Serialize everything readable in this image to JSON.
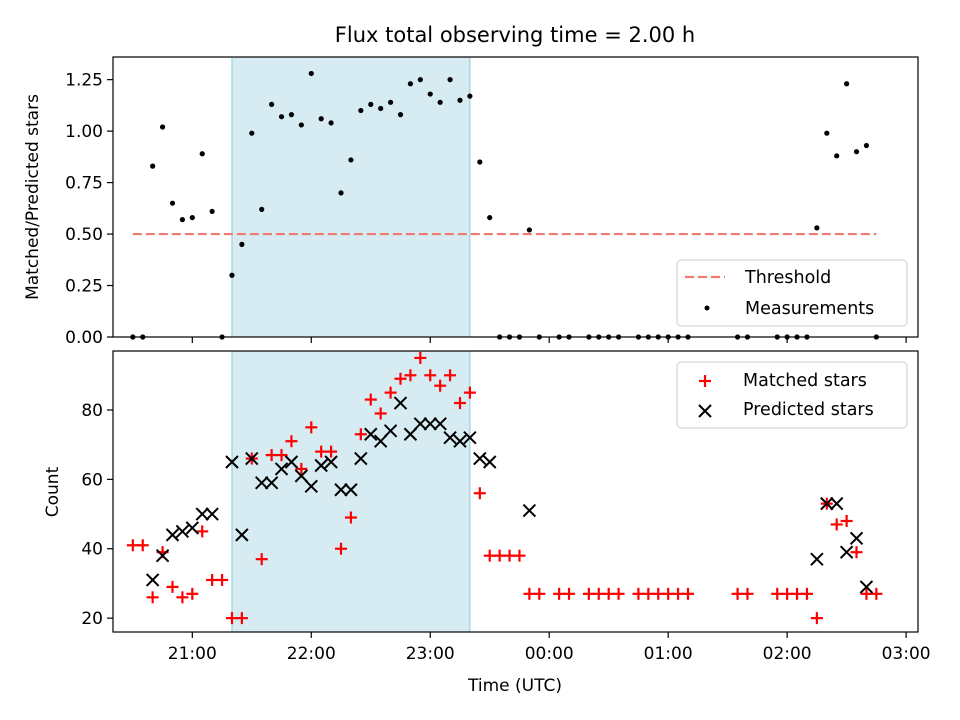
{
  "chart_data": [
    {
      "type": "scatter",
      "title": "Flux total observing time = 2.00 h",
      "xlabel": "",
      "ylabel": "Matched/Predicted stars",
      "xlim": [
        "20:20",
        "03:06"
      ],
      "ylim": [
        0.0,
        1.36
      ],
      "yticks": [
        "0.00",
        "0.25",
        "0.50",
        "0.75",
        "1.00",
        "1.25"
      ],
      "shaded_interval": [
        "21:20",
        "23:20"
      ],
      "legend_position": "lower right",
      "threshold": {
        "name": "Threshold",
        "value": 0.5,
        "x_start": "20:30",
        "x_end": "02:45",
        "color": "#f07a72"
      },
      "series": [
        {
          "name": "Measurements",
          "color": "#000000",
          "marker": "dot",
          "points": [
            [
              "20:30",
              0.0
            ],
            [
              "20:35",
              0.0
            ],
            [
              "20:40",
              0.83
            ],
            [
              "20:45",
              1.02
            ],
            [
              "20:50",
              0.65
            ],
            [
              "20:55",
              0.57
            ],
            [
              "21:00",
              0.58
            ],
            [
              "21:05",
              0.89
            ],
            [
              "21:10",
              0.61
            ],
            [
              "21:15",
              0.0
            ],
            [
              "21:20",
              0.3
            ],
            [
              "21:25",
              0.45
            ],
            [
              "21:30",
              0.99
            ],
            [
              "21:35",
              0.62
            ],
            [
              "21:40",
              1.13
            ],
            [
              "21:45",
              1.07
            ],
            [
              "21:50",
              1.08
            ],
            [
              "21:55",
              1.03
            ],
            [
              "22:00",
              1.28
            ],
            [
              "22:05",
              1.06
            ],
            [
              "22:10",
              1.04
            ],
            [
              "22:15",
              0.7
            ],
            [
              "22:20",
              0.86
            ],
            [
              "22:25",
              1.1
            ],
            [
              "22:30",
              1.13
            ],
            [
              "22:35",
              1.11
            ],
            [
              "22:40",
              1.14
            ],
            [
              "22:45",
              1.08
            ],
            [
              "22:50",
              1.23
            ],
            [
              "22:55",
              1.25
            ],
            [
              "23:00",
              1.18
            ],
            [
              "23:05",
              1.14
            ],
            [
              "23:10",
              1.25
            ],
            [
              "23:15",
              1.15
            ],
            [
              "23:20",
              1.17
            ],
            [
              "23:25",
              0.85
            ],
            [
              "23:30",
              0.58
            ],
            [
              "23:35",
              0.0
            ],
            [
              "23:40",
              0.0
            ],
            [
              "23:45",
              0.0
            ],
            [
              "23:50",
              0.52
            ],
            [
              "23:55",
              0.0
            ],
            [
              "00:05",
              0.0
            ],
            [
              "00:10",
              0.0
            ],
            [
              "00:20",
              0.0
            ],
            [
              "00:25",
              0.0
            ],
            [
              "00:30",
              0.0
            ],
            [
              "00:35",
              0.0
            ],
            [
              "00:45",
              0.0
            ],
            [
              "00:50",
              0.0
            ],
            [
              "00:55",
              0.0
            ],
            [
              "01:00",
              0.0
            ],
            [
              "01:05",
              0.0
            ],
            [
              "01:10",
              0.0
            ],
            [
              "01:35",
              0.0
            ],
            [
              "01:40",
              0.0
            ],
            [
              "01:55",
              0.0
            ],
            [
              "02:00",
              0.0
            ],
            [
              "02:05",
              0.0
            ],
            [
              "02:10",
              0.0
            ],
            [
              "02:15",
              0.53
            ],
            [
              "02:20",
              0.99
            ],
            [
              "02:25",
              0.88
            ],
            [
              "02:30",
              1.23
            ],
            [
              "02:35",
              0.9
            ],
            [
              "02:40",
              0.93
            ],
            [
              "02:45",
              0.0
            ]
          ]
        }
      ]
    },
    {
      "type": "scatter",
      "title": "",
      "xlabel": "Time (UTC)",
      "ylabel": "Count",
      "xlim": [
        "20:20",
        "03:06"
      ],
      "ylim": [
        16.0,
        97.0
      ],
      "xticks": [
        "21:00",
        "22:00",
        "23:00",
        "00:00",
        "01:00",
        "02:00",
        "03:00"
      ],
      "yticks": [
        "20",
        "40",
        "60",
        "80"
      ],
      "shaded_interval": [
        "21:20",
        "23:20"
      ],
      "legend_position": "upper right",
      "series": [
        {
          "name": "Matched stars",
          "color": "#ff0000",
          "marker": "plus",
          "points": [
            [
              "20:30",
              41
            ],
            [
              "20:35",
              41
            ],
            [
              "20:40",
              26
            ],
            [
              "20:45",
              39
            ],
            [
              "20:50",
              29
            ],
            [
              "20:55",
              26
            ],
            [
              "21:00",
              27
            ],
            [
              "21:05",
              45
            ],
            [
              "21:10",
              31
            ],
            [
              "21:15",
              31
            ],
            [
              "21:20",
              20
            ],
            [
              "21:25",
              20
            ],
            [
              "21:30",
              66
            ],
            [
              "21:35",
              37
            ],
            [
              "21:40",
              67
            ],
            [
              "21:45",
              67
            ],
            [
              "21:50",
              71
            ],
            [
              "21:55",
              63
            ],
            [
              "22:00",
              75
            ],
            [
              "22:05",
              68
            ],
            [
              "22:10",
              68
            ],
            [
              "22:15",
              40
            ],
            [
              "22:20",
              49
            ],
            [
              "22:25",
              73
            ],
            [
              "22:30",
              83
            ],
            [
              "22:35",
              79
            ],
            [
              "22:40",
              85
            ],
            [
              "22:45",
              89
            ],
            [
              "22:50",
              90
            ],
            [
              "22:55",
              95
            ],
            [
              "23:00",
              90
            ],
            [
              "23:05",
              87
            ],
            [
              "23:10",
              90
            ],
            [
              "23:15",
              82
            ],
            [
              "23:20",
              85
            ],
            [
              "23:25",
              56
            ],
            [
              "23:30",
              38
            ],
            [
              "23:35",
              38
            ],
            [
              "23:40",
              38
            ],
            [
              "23:45",
              38
            ],
            [
              "23:50",
              27
            ],
            [
              "23:55",
              27
            ],
            [
              "00:05",
              27
            ],
            [
              "00:10",
              27
            ],
            [
              "00:20",
              27
            ],
            [
              "00:25",
              27
            ],
            [
              "00:30",
              27
            ],
            [
              "00:35",
              27
            ],
            [
              "00:45",
              27
            ],
            [
              "00:50",
              27
            ],
            [
              "00:55",
              27
            ],
            [
              "01:00",
              27
            ],
            [
              "01:05",
              27
            ],
            [
              "01:10",
              27
            ],
            [
              "01:35",
              27
            ],
            [
              "01:40",
              27
            ],
            [
              "01:55",
              27
            ],
            [
              "02:00",
              27
            ],
            [
              "02:05",
              27
            ],
            [
              "02:10",
              27
            ],
            [
              "02:15",
              20
            ],
            [
              "02:20",
              53
            ],
            [
              "02:25",
              47
            ],
            [
              "02:30",
              48
            ],
            [
              "02:35",
              39
            ],
            [
              "02:40",
              27
            ],
            [
              "02:45",
              27
            ]
          ]
        },
        {
          "name": "Predicted stars",
          "color": "#000000",
          "marker": "x",
          "points": [
            [
              "20:40",
              31
            ],
            [
              "20:45",
              38
            ],
            [
              "20:50",
              44
            ],
            [
              "20:55",
              45
            ],
            [
              "21:00",
              46
            ],
            [
              "21:05",
              50
            ],
            [
              "21:10",
              50
            ],
            [
              "21:20",
              65
            ],
            [
              "21:25",
              44
            ],
            [
              "21:30",
              66
            ],
            [
              "21:35",
              59
            ],
            [
              "21:40",
              59
            ],
            [
              "21:45",
              63
            ],
            [
              "21:50",
              65
            ],
            [
              "21:55",
              61
            ],
            [
              "22:00",
              58
            ],
            [
              "22:05",
              64
            ],
            [
              "22:10",
              65
            ],
            [
              "22:15",
              57
            ],
            [
              "22:20",
              57
            ],
            [
              "22:25",
              66
            ],
            [
              "22:30",
              73
            ],
            [
              "22:35",
              71
            ],
            [
              "22:40",
              74
            ],
            [
              "22:45",
              82
            ],
            [
              "22:50",
              73
            ],
            [
              "22:55",
              76
            ],
            [
              "23:00",
              76
            ],
            [
              "23:05",
              76
            ],
            [
              "23:10",
              72
            ],
            [
              "23:15",
              71
            ],
            [
              "23:20",
              72
            ],
            [
              "23:25",
              66
            ],
            [
              "23:30",
              65
            ],
            [
              "23:50",
              51
            ],
            [
              "02:15",
              37
            ],
            [
              "02:20",
              53
            ],
            [
              "02:25",
              53
            ],
            [
              "02:30",
              39
            ],
            [
              "02:35",
              43
            ],
            [
              "02:40",
              29
            ]
          ]
        }
      ]
    }
  ]
}
